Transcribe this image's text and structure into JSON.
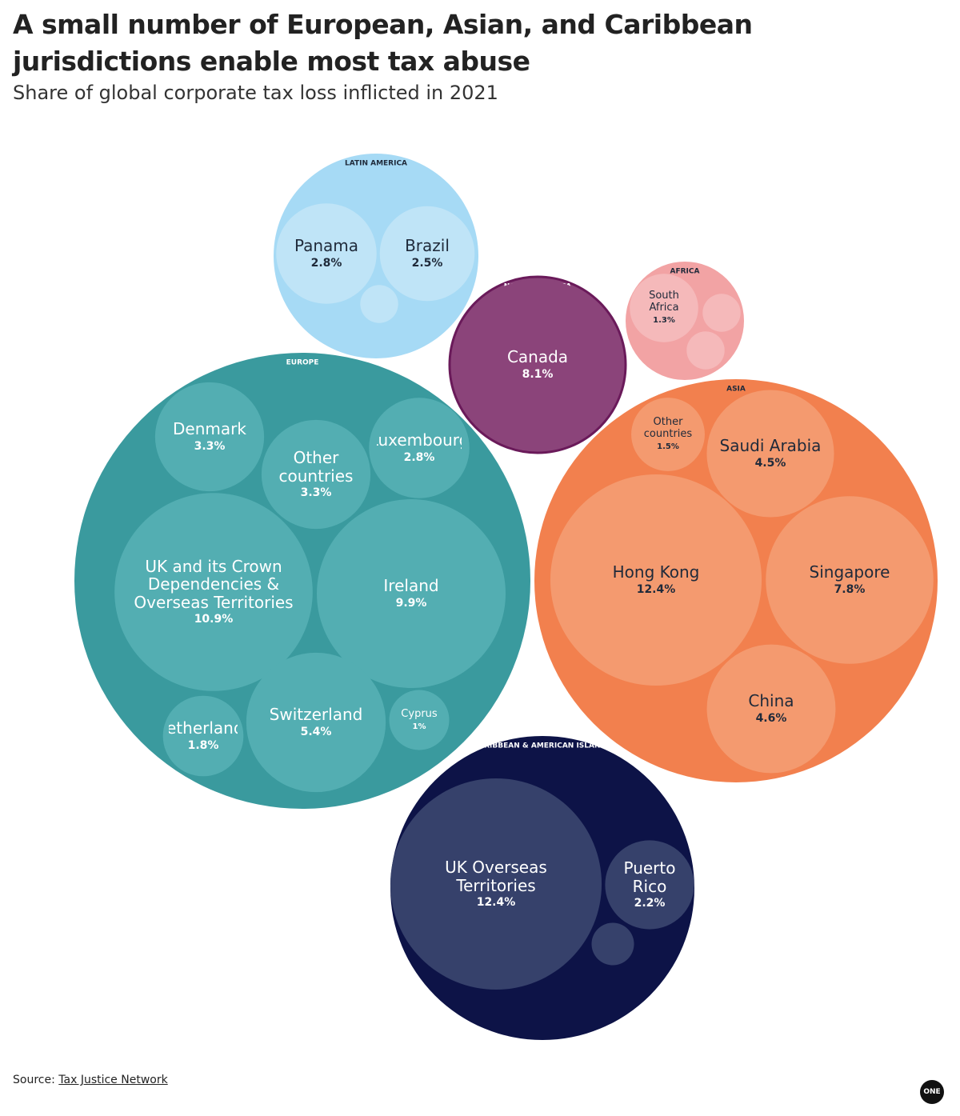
{
  "chart_data": {
    "type": "packed-bubble",
    "title": "A small number of European, Asian, and Caribbean jurisdictions enable most tax abuse",
    "subtitle": "Share of global corporate tax loss inflicted in 2021",
    "source_label": "Source:",
    "source": "Tax Justice Network",
    "logo": "ONE",
    "groups": [
      {
        "name": "LATIN AMERICA",
        "color": "#a6daf5",
        "child_color": "#bfe4f7",
        "text_color": "#1f2a3a",
        "children": [
          {
            "name": "Panama",
            "value": 2.8,
            "value_label": "2.8%"
          },
          {
            "name": "Brazil",
            "value": 2.5,
            "value_label": "2.5%"
          },
          {
            "name": null,
            "value": 0.4,
            "value_label": null
          }
        ]
      },
      {
        "name": "AFRICA",
        "color": "#f2a3a4",
        "child_color": "#f5b9ba",
        "text_color": "#1f2a3a",
        "children": [
          {
            "name": "South Africa",
            "value": 1.3,
            "value_label": "1.3%"
          },
          {
            "name": null,
            "value": 0.4,
            "value_label": null
          },
          {
            "name": null,
            "value": 0.4,
            "value_label": null
          }
        ]
      },
      {
        "name": "NORTH AMERICA",
        "color": "#8b447a",
        "child_color": "#8b447a",
        "text_color": "#ffffff",
        "children": [
          {
            "name": "Canada",
            "value": 8.1,
            "value_label": "8.1%"
          }
        ]
      },
      {
        "name": "EUROPE",
        "color": "#3a9a9e",
        "child_color": "#53aeb2",
        "text_color": "#ffffff",
        "children": [
          {
            "name": "Denmark",
            "value": 3.3,
            "value_label": "3.3%"
          },
          {
            "name": "Other countries",
            "value": 3.3,
            "value_label": "3.3%"
          },
          {
            "name": "Luxembourg",
            "value": 2.8,
            "value_label": "2.8%"
          },
          {
            "name": "UK and its Crown Dependencies & Overseas Territories",
            "value": 10.9,
            "value_label": "10.9%"
          },
          {
            "name": "Ireland",
            "value": 9.9,
            "value_label": "9.9%"
          },
          {
            "name": "Netherlands",
            "value": 1.8,
            "value_label": "1.8%"
          },
          {
            "name": "Switzerland",
            "value": 5.4,
            "value_label": "5.4%"
          },
          {
            "name": "Cyprus",
            "value": 1,
            "value_label": "1%"
          }
        ]
      },
      {
        "name": "ASIA",
        "color": "#f2804e",
        "child_color": "#f49a6f",
        "text_color": "#1f2a3a",
        "children": [
          {
            "name": "Other countries",
            "value": 1.5,
            "value_label": "1.5%"
          },
          {
            "name": "Saudi Arabia",
            "value": 4.5,
            "value_label": "4.5%"
          },
          {
            "name": "Hong Kong",
            "value": 12.4,
            "value_label": "12.4%"
          },
          {
            "name": "Singapore",
            "value": 7.8,
            "value_label": "7.8%"
          },
          {
            "name": "China",
            "value": 4.6,
            "value_label": "4.6%"
          }
        ]
      },
      {
        "name": "CARIBBEAN & AMERICAN ISLANDS",
        "color": "#0d1347",
        "child_color": "#36416b",
        "text_color": "#ffffff",
        "children": [
          {
            "name": "UK Overseas Territories",
            "value": 12.4,
            "value_label": "12.4%"
          },
          {
            "name": "Puerto Rico",
            "value": 2.2,
            "value_label": "2.2%"
          },
          {
            "name": null,
            "value": 0.5,
            "value_label": null
          }
        ]
      }
    ]
  }
}
